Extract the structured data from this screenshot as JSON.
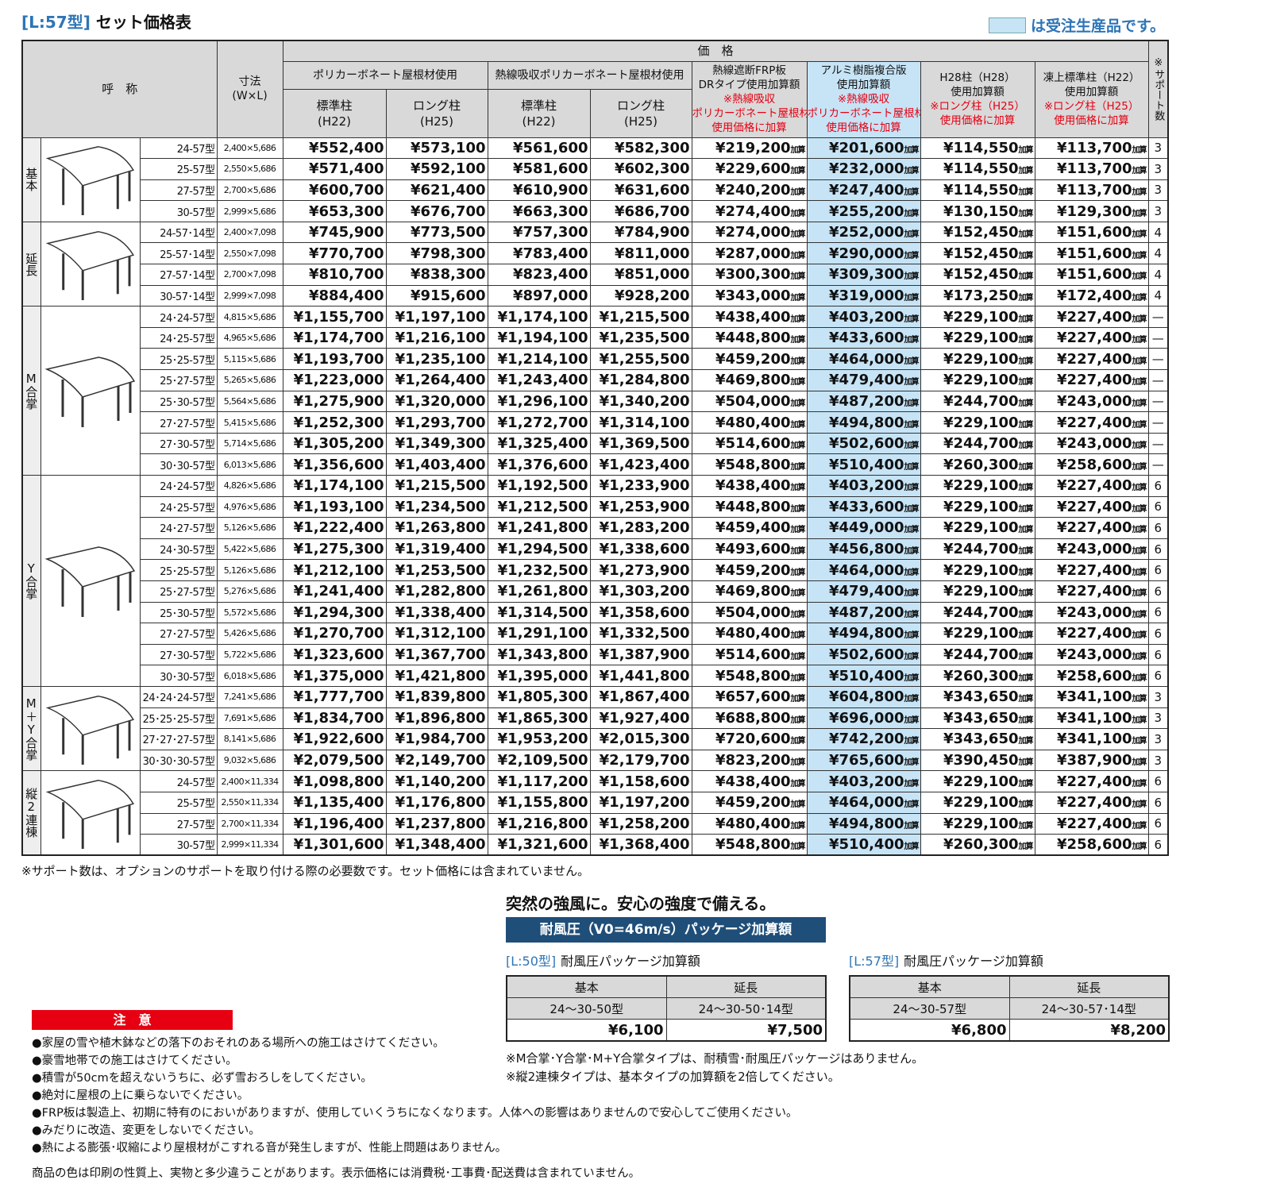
{
  "header": {
    "tag": "[L:57型]",
    "title": "セット価格表",
    "legend": "は受注生産品です。"
  },
  "table": {
    "col_name": "呼　称",
    "col_size": [
      "寸法",
      "(W×L)"
    ],
    "col_price": "価　格",
    "col_support": "※サポート数",
    "price_groups": [
      "ポリカーボネート屋根材使用",
      "熱線吸収ポリカーボネート屋根材使用"
    ],
    "sub_cols": [
      [
        "標準柱",
        "(H22)"
      ],
      [
        "ロング柱",
        "(H25)"
      ],
      [
        "標準柱",
        "(H22)"
      ],
      [
        "ロング柱",
        "(H25)"
      ]
    ],
    "add_cols": [
      {
        "lines": [
          "熱線遮断FRP板",
          "DRタイプ使用加算額"
        ],
        "notes": [
          "※熱線吸収",
          "ポリカーボネート屋根材",
          "使用価格に加算"
        ]
      },
      {
        "lines": [
          "アルミ樹脂複合版",
          "使用加算額"
        ],
        "notes": [
          "※熱線吸収",
          "ポリカーボネート屋根材",
          "使用価格に加算"
        ]
      },
      {
        "lines": [
          "H28柱（H28）",
          "使用加算額"
        ],
        "notes": [
          "※ロング柱（H25）",
          "使用価格に加算"
        ]
      },
      {
        "lines": [
          "凍上標準柱（H22）",
          "使用加算額"
        ],
        "notes": [
          "※ロング柱（H25）",
          "使用価格に加算"
        ]
      }
    ],
    "add_suffix": "加算",
    "groups": [
      {
        "label": "基本",
        "rows": [
          [
            "24-57型",
            "2,400×5,686",
            "¥552,400",
            "¥573,100",
            "¥561,600",
            "¥582,300",
            "¥219,200",
            "¥201,600",
            "¥114,550",
            "¥113,700",
            3
          ],
          [
            "25-57型",
            "2,550×5,686",
            "¥571,400",
            "¥592,100",
            "¥581,600",
            "¥602,300",
            "¥229,600",
            "¥232,000",
            "¥114,550",
            "¥113,700",
            3
          ],
          [
            "27-57型",
            "2,700×5,686",
            "¥600,700",
            "¥621,400",
            "¥610,900",
            "¥631,600",
            "¥240,200",
            "¥247,400",
            "¥114,550",
            "¥113,700",
            3
          ],
          [
            "30-57型",
            "2,999×5,686",
            "¥653,300",
            "¥676,700",
            "¥663,300",
            "¥686,700",
            "¥274,400",
            "¥255,200",
            "¥130,150",
            "¥129,300",
            3
          ]
        ]
      },
      {
        "label": "延長",
        "rows": [
          [
            "24-57･14型",
            "2,400×7,098",
            "¥745,900",
            "¥773,500",
            "¥757,300",
            "¥784,900",
            "¥274,000",
            "¥252,000",
            "¥152,450",
            "¥151,600",
            4
          ],
          [
            "25-57･14型",
            "2,550×7,098",
            "¥770,700",
            "¥798,300",
            "¥783,400",
            "¥811,000",
            "¥287,000",
            "¥290,000",
            "¥152,450",
            "¥151,600",
            4
          ],
          [
            "27-57･14型",
            "2,700×7,098",
            "¥810,700",
            "¥838,300",
            "¥823,400",
            "¥851,000",
            "¥300,300",
            "¥309,300",
            "¥152,450",
            "¥151,600",
            4
          ],
          [
            "30-57･14型",
            "2,999×7,098",
            "¥884,400",
            "¥915,600",
            "¥897,000",
            "¥928,200",
            "¥343,000",
            "¥319,000",
            "¥173,250",
            "¥172,400",
            4
          ]
        ]
      },
      {
        "label": "M合掌",
        "rows": [
          [
            "24･24-57型",
            "4,815×5,686",
            "¥1,155,700",
            "¥1,197,100",
            "¥1,174,100",
            "¥1,215,500",
            "¥438,400",
            "¥403,200",
            "¥229,100",
            "¥227,400",
            "—"
          ],
          [
            "24･25-57型",
            "4,965×5,686",
            "¥1,174,700",
            "¥1,216,100",
            "¥1,194,100",
            "¥1,235,500",
            "¥448,800",
            "¥433,600",
            "¥229,100",
            "¥227,400",
            "—"
          ],
          [
            "25･25-57型",
            "5,115×5,686",
            "¥1,193,700",
            "¥1,235,100",
            "¥1,214,100",
            "¥1,255,500",
            "¥459,200",
            "¥464,000",
            "¥229,100",
            "¥227,400",
            "—"
          ],
          [
            "25･27-57型",
            "5,265×5,686",
            "¥1,223,000",
            "¥1,264,400",
            "¥1,243,400",
            "¥1,284,800",
            "¥469,800",
            "¥479,400",
            "¥229,100",
            "¥227,400",
            "—"
          ],
          [
            "25･30-57型",
            "5,564×5,686",
            "¥1,275,900",
            "¥1,320,000",
            "¥1,296,100",
            "¥1,340,200",
            "¥504,000",
            "¥487,200",
            "¥244,700",
            "¥243,000",
            "—"
          ],
          [
            "27･27-57型",
            "5,415×5,686",
            "¥1,252,300",
            "¥1,293,700",
            "¥1,272,700",
            "¥1,314,100",
            "¥480,400",
            "¥494,800",
            "¥229,100",
            "¥227,400",
            "—"
          ],
          [
            "27･30-57型",
            "5,714×5,686",
            "¥1,305,200",
            "¥1,349,300",
            "¥1,325,400",
            "¥1,369,500",
            "¥514,600",
            "¥502,600",
            "¥244,700",
            "¥243,000",
            "—"
          ],
          [
            "30･30-57型",
            "6,013×5,686",
            "¥1,356,600",
            "¥1,403,400",
            "¥1,376,600",
            "¥1,423,400",
            "¥548,800",
            "¥510,400",
            "¥260,300",
            "¥258,600",
            "—"
          ]
        ]
      },
      {
        "label": "Y合掌",
        "rows": [
          [
            "24･24-57型",
            "4,826×5,686",
            "¥1,174,100",
            "¥1,215,500",
            "¥1,192,500",
            "¥1,233,900",
            "¥438,400",
            "¥403,200",
            "¥229,100",
            "¥227,400",
            6
          ],
          [
            "24･25-57型",
            "4,976×5,686",
            "¥1,193,100",
            "¥1,234,500",
            "¥1,212,500",
            "¥1,253,900",
            "¥448,800",
            "¥433,600",
            "¥229,100",
            "¥227,400",
            6
          ],
          [
            "24･27-57型",
            "5,126×5,686",
            "¥1,222,400",
            "¥1,263,800",
            "¥1,241,800",
            "¥1,283,200",
            "¥459,400",
            "¥449,000",
            "¥229,100",
            "¥227,400",
            6
          ],
          [
            "24･30-57型",
            "5,422×5,686",
            "¥1,275,300",
            "¥1,319,400",
            "¥1,294,500",
            "¥1,338,600",
            "¥493,600",
            "¥456,800",
            "¥244,700",
            "¥243,000",
            6
          ],
          [
            "25･25-57型",
            "5,126×5,686",
            "¥1,212,100",
            "¥1,253,500",
            "¥1,232,500",
            "¥1,273,900",
            "¥459,200",
            "¥464,000",
            "¥229,100",
            "¥227,400",
            6
          ],
          [
            "25･27-57型",
            "5,276×5,686",
            "¥1,241,400",
            "¥1,282,800",
            "¥1,261,800",
            "¥1,303,200",
            "¥469,800",
            "¥479,400",
            "¥229,100",
            "¥227,400",
            6
          ],
          [
            "25･30-57型",
            "5,572×5,686",
            "¥1,294,300",
            "¥1,338,400",
            "¥1,314,500",
            "¥1,358,600",
            "¥504,000",
            "¥487,200",
            "¥244,700",
            "¥243,000",
            6
          ],
          [
            "27･27-57型",
            "5,426×5,686",
            "¥1,270,700",
            "¥1,312,100",
            "¥1,291,100",
            "¥1,332,500",
            "¥480,400",
            "¥494,800",
            "¥229,100",
            "¥227,400",
            6
          ],
          [
            "27･30-57型",
            "5,722×5,686",
            "¥1,323,600",
            "¥1,367,700",
            "¥1,343,800",
            "¥1,387,900",
            "¥514,600",
            "¥502,600",
            "¥244,700",
            "¥243,000",
            6
          ],
          [
            "30･30-57型",
            "6,018×5,686",
            "¥1,375,000",
            "¥1,421,800",
            "¥1,395,000",
            "¥1,441,800",
            "¥548,800",
            "¥510,400",
            "¥260,300",
            "¥258,600",
            6
          ]
        ]
      },
      {
        "label": "M＋Y合掌",
        "rows": [
          [
            "24･24･24-57型",
            "7,241×5,686",
            "¥1,777,700",
            "¥1,839,800",
            "¥1,805,300",
            "¥1,867,400",
            "¥657,600",
            "¥604,800",
            "¥343,650",
            "¥341,100",
            3
          ],
          [
            "25･25･25-57型",
            "7,691×5,686",
            "¥1,834,700",
            "¥1,896,800",
            "¥1,865,300",
            "¥1,927,400",
            "¥688,800",
            "¥696,000",
            "¥343,650",
            "¥341,100",
            3
          ],
          [
            "27･27･27-57型",
            "8,141×5,686",
            "¥1,922,600",
            "¥1,984,700",
            "¥1,953,200",
            "¥2,015,300",
            "¥720,600",
            "¥742,200",
            "¥343,650",
            "¥341,100",
            3
          ],
          [
            "30･30･30-57型",
            "9,032×5,686",
            "¥2,079,500",
            "¥2,149,700",
            "¥2,109,500",
            "¥2,179,700",
            "¥823,200",
            "¥765,600",
            "¥390,450",
            "¥387,900",
            3
          ]
        ]
      },
      {
        "label": "縦2連棟",
        "rows": [
          [
            "24-57型",
            "2,400×11,334",
            "¥1,098,800",
            "¥1,140,200",
            "¥1,117,200",
            "¥1,158,600",
            "¥438,400",
            "¥403,200",
            "¥229,100",
            "¥227,400",
            6
          ],
          [
            "25-57型",
            "2,550×11,334",
            "¥1,135,400",
            "¥1,176,800",
            "¥1,155,800",
            "¥1,197,200",
            "¥459,200",
            "¥464,000",
            "¥229,100",
            "¥227,400",
            6
          ],
          [
            "27-57型",
            "2,700×11,334",
            "¥1,196,400",
            "¥1,237,800",
            "¥1,216,800",
            "¥1,258,200",
            "¥480,400",
            "¥494,800",
            "¥229,100",
            "¥227,400",
            6
          ],
          [
            "30-57型",
            "2,999×11,334",
            "¥1,301,600",
            "¥1,348,400",
            "¥1,321,600",
            "¥1,368,400",
            "¥548,800",
            "¥510,400",
            "¥260,300",
            "¥258,600",
            6
          ]
        ]
      }
    ]
  },
  "support_note": "※サポート数は、オプションのサポートを取り付ける際の必要数です。セット価格には含まれていません。",
  "wind": {
    "headline": "突然の強風に。安心の強度で備える。",
    "banner": "耐風圧（V0=46m/s）パッケージ加算額",
    "tables": [
      {
        "tag": "[L:50型]",
        "title": "耐風圧パッケージ加算額",
        "heads": [
          "基本",
          "延長"
        ],
        "models": [
          "24〜30-50型",
          "24〜30-50･14型"
        ],
        "prices": [
          "¥6,100",
          "¥7,500"
        ]
      },
      {
        "tag": "[L:57型]",
        "title": "耐風圧パッケージ加算額",
        "heads": [
          "基本",
          "延長"
        ],
        "models": [
          "24〜30-57型",
          "24〜30-57･14型"
        ],
        "prices": [
          "¥6,800",
          "¥8,200"
        ]
      }
    ],
    "notes": [
      "※M合掌･Y合掌･M+Y合掌タイプは、耐積雪･耐風圧パッケージはありません。",
      "※縦2連棟タイプは、基本タイプの加算額を2倍してください。"
    ]
  },
  "caution": {
    "title": "注　意",
    "items": [
      "●家屋の雪や植木鉢などの落下のおそれのある場所への施工はさけてください。",
      "●豪雪地帯での施工はさけてください。",
      "●積雪が50cmを超えないうちに、必ず雪おろしをしてください。",
      "●絶対に屋根の上に乗らないでください。",
      "●FRP板は製造上、初期に特有のにおいがありますが、使用していくうちになくなります。人体への影響はありませんので安心してご使用ください。",
      "●みだりに改造、変更をしないでください。",
      "●熱による膨張･収縮により屋根材がこすれる音が発生しますが、性能上問題はありません。"
    ]
  },
  "footer": "商品の色は印刷の性質上、実物と多少違うことがあります。表示価格には消費税･工事費･配送費は含まれていません。"
}
